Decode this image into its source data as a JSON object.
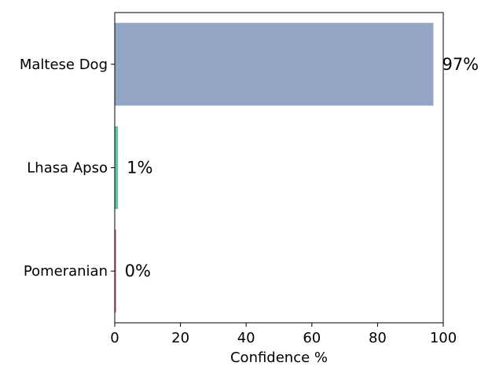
{
  "chart_data": {
    "type": "bar",
    "orientation": "horizontal",
    "categories": [
      "Maltese Dog",
      "Lhasa Apso",
      "Pomeranian"
    ],
    "values": [
      97,
      1,
      0.4
    ],
    "data_labels": [
      "97%",
      "1%",
      "0%"
    ],
    "colors": [
      "#94a6c6",
      "#66c2a5",
      "#e05a8a"
    ],
    "xlabel": "Confidence %",
    "ylabel": "",
    "xlim": [
      0,
      100
    ],
    "xticks": [
      0,
      20,
      40,
      60,
      80,
      100
    ],
    "grid": false,
    "legend": "none"
  }
}
